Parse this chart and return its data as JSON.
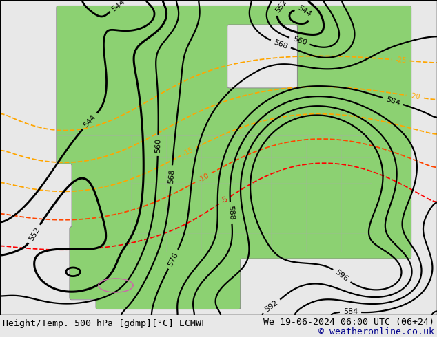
{
  "title_left": "Height/Temp. 500 hPa [gdmp][°C] ECMWF",
  "title_right": "We 19-06-2024 06:00 UTC (06+24)",
  "copyright": "© weatheronline.co.uk",
  "bg_color": "#e8e8e8",
  "map_bg": "#ffffff",
  "font_family": "DejaVu Sans Mono",
  "footer_fontsize": 9.5,
  "copyright_color": "#00008B",
  "land_green": [
    0.55,
    0.82,
    0.45,
    1.0
  ],
  "ocean_color": "#ffffff",
  "coast_color": "#888888",
  "border_color": "#aaaaaa",
  "height_color": "#000000",
  "height_levels": [
    544,
    552,
    560,
    568,
    576,
    584,
    588,
    592,
    596
  ],
  "height_lw": [
    2.0,
    2.2,
    1.6,
    1.6,
    1.6,
    1.6,
    1.6,
    1.6,
    1.6
  ],
  "temp_levels": [
    -25,
    -20,
    -15,
    -10,
    -5
  ],
  "temp_colors": [
    "#FFA500",
    "#FFA500",
    "#FFA500",
    "#FF4500",
    "#FF0000"
  ],
  "temp_lw": 1.3,
  "label_fontsize": 8
}
